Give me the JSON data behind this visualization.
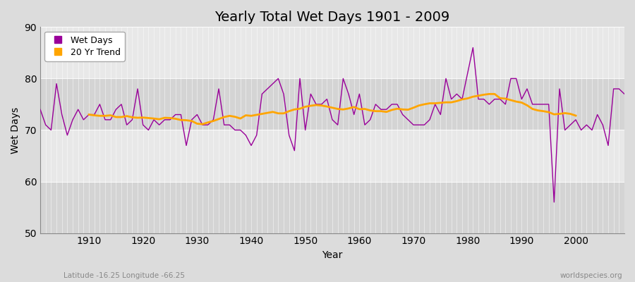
{
  "title": "Yearly Total Wet Days 1901 - 2009",
  "xlabel": "Year",
  "ylabel": "Wet Days",
  "subtitle": "Latitude -16.25 Longitude -66.25",
  "watermark": "worldspecies.org",
  "years": [
    1901,
    1902,
    1903,
    1904,
    1905,
    1906,
    1907,
    1908,
    1909,
    1910,
    1911,
    1912,
    1913,
    1914,
    1915,
    1916,
    1917,
    1918,
    1919,
    1920,
    1921,
    1922,
    1923,
    1924,
    1925,
    1926,
    1927,
    1928,
    1929,
    1930,
    1931,
    1932,
    1933,
    1934,
    1935,
    1936,
    1937,
    1938,
    1939,
    1940,
    1941,
    1942,
    1943,
    1944,
    1945,
    1946,
    1947,
    1948,
    1949,
    1950,
    1951,
    1952,
    1953,
    1954,
    1955,
    1956,
    1957,
    1958,
    1959,
    1960,
    1961,
    1962,
    1963,
    1964,
    1965,
    1966,
    1967,
    1968,
    1969,
    1970,
    1971,
    1972,
    1973,
    1974,
    1975,
    1976,
    1977,
    1978,
    1979,
    1980,
    1981,
    1982,
    1983,
    1984,
    1985,
    1986,
    1987,
    1988,
    1989,
    1990,
    1991,
    1992,
    1993,
    1994,
    1995,
    1996,
    1997,
    1998,
    1999,
    2000,
    2001,
    2002,
    2003,
    2004,
    2005,
    2006,
    2007,
    2008,
    2009
  ],
  "wet_days": [
    74,
    71,
    70,
    79,
    73,
    69,
    72,
    74,
    72,
    73,
    73,
    75,
    72,
    72,
    74,
    75,
    71,
    72,
    78,
    71,
    70,
    72,
    71,
    72,
    72,
    73,
    73,
    67,
    72,
    73,
    71,
    71,
    72,
    78,
    71,
    71,
    70,
    70,
    69,
    67,
    69,
    77,
    78,
    79,
    80,
    77,
    69,
    66,
    80,
    70,
    77,
    75,
    75,
    76,
    72,
    71,
    80,
    77,
    73,
    77,
    71,
    72,
    75,
    74,
    74,
    75,
    75,
    73,
    72,
    71,
    71,
    71,
    72,
    75,
    73,
    80,
    76,
    77,
    76,
    81,
    86,
    76,
    76,
    75,
    76,
    76,
    75,
    80,
    80,
    76,
    78,
    75,
    75,
    75,
    75,
    56,
    78,
    70,
    71,
    72,
    70,
    71,
    70,
    73,
    71,
    67,
    78,
    78,
    77
  ],
  "wet_days_color": "#990099",
  "trend_color": "#FFA500",
  "bg_color": "#DCDCDC",
  "bg_band_light": "#E8E8E8",
  "bg_band_dark": "#D4D4D4",
  "ylim": [
    50,
    90
  ],
  "yticks": [
    50,
    60,
    70,
    80,
    90
  ],
  "xlim": [
    1901,
    2009
  ],
  "xticks": [
    1910,
    1920,
    1930,
    1940,
    1950,
    1960,
    1970,
    1980,
    1990,
    2000
  ],
  "title_fontsize": 14,
  "axis_fontsize": 10,
  "legend_fontsize": 9,
  "trend_window": 20
}
